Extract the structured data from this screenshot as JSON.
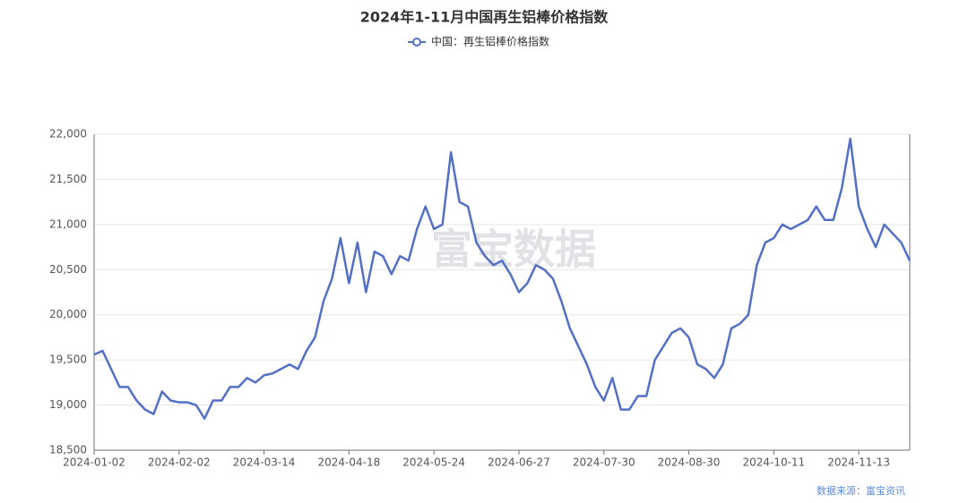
{
  "chart_data": {
    "type": "line",
    "title": "2024年1-11月中国再生铝棒价格指数",
    "source": "数据来源：富宝资讯",
    "watermark": "富宝数据",
    "categories": [
      "2024-01-02",
      null,
      null,
      null,
      null,
      null,
      null,
      null,
      null,
      null,
      "2024-02-02",
      null,
      null,
      null,
      null,
      null,
      null,
      null,
      null,
      null,
      "2024-03-14",
      null,
      null,
      null,
      null,
      null,
      null,
      null,
      null,
      null,
      "2024-04-18",
      null,
      null,
      null,
      null,
      null,
      null,
      null,
      null,
      null,
      "2024-05-24",
      null,
      null,
      null,
      null,
      null,
      null,
      null,
      null,
      null,
      "2024-06-27",
      null,
      null,
      null,
      null,
      null,
      null,
      null,
      null,
      null,
      "2024-07-30",
      null,
      null,
      null,
      null,
      null,
      null,
      null,
      null,
      null,
      "2024-08-30",
      null,
      null,
      null,
      null,
      null,
      null,
      null,
      null,
      null,
      "2024-10-11",
      null,
      null,
      null,
      null,
      null,
      null,
      null,
      null,
      null,
      "2024-11-13",
      null,
      null,
      null,
      null,
      null,
      null
    ],
    "series": [
      {
        "name": "中国：再生铝棒价格指数",
        "color": "#5470c6",
        "values": [
          19560,
          19600,
          19400,
          19200,
          19200,
          19050,
          18950,
          18900,
          19150,
          19050,
          19030,
          19030,
          19000,
          18850,
          19050,
          19050,
          19200,
          19200,
          19300,
          19250,
          19330,
          19350,
          19400,
          19450,
          19400,
          19600,
          19750,
          20150,
          20400,
          20850,
          20350,
          20800,
          20250,
          20700,
          20650,
          20450,
          20650,
          20600,
          20950,
          21200,
          20950,
          21000,
          21800,
          21250,
          21200,
          20800,
          20650,
          20550,
          20600,
          20450,
          20250,
          20350,
          20550,
          20500,
          20400,
          20150,
          19850,
          19650,
          19450,
          19200,
          19050,
          19300,
          18950,
          18950,
          19100,
          19100,
          19500,
          19650,
          19800,
          19850,
          19750,
          19450,
          19400,
          19300,
          19450,
          19850,
          19900,
          20000,
          20550,
          20800,
          20850,
          21000,
          20950,
          21000,
          21050,
          21200,
          21050,
          21050,
          21400,
          21950,
          21200,
          20950,
          20750,
          21000,
          20900,
          20800,
          20600
        ]
      }
    ],
    "ylim": [
      18500,
      22000
    ],
    "yticks": [
      {
        "value": 18500,
        "label": "18,500"
      },
      {
        "value": 19000,
        "label": "19,000"
      },
      {
        "value": 19500,
        "label": "19,500"
      },
      {
        "value": 20000,
        "label": "20,000"
      },
      {
        "value": 20500,
        "label": "20,500"
      },
      {
        "value": 21000,
        "label": "21,000"
      },
      {
        "value": 21500,
        "label": "21,500"
      },
      {
        "value": 22000,
        "label": "22,000"
      }
    ],
    "grid": true
  }
}
